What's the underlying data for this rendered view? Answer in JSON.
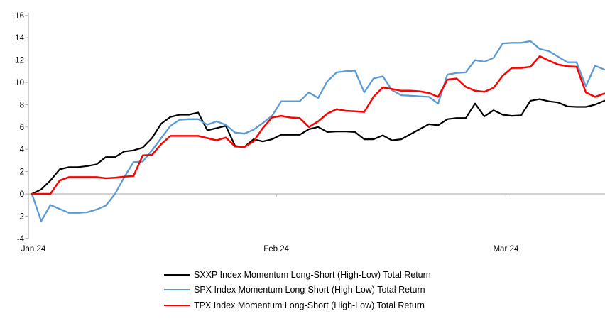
{
  "colors": {
    "background": "#FFFFFF",
    "axis_line": "#A6A6A6",
    "tick_text": "#000000"
  },
  "chart_data": {
    "type": "line",
    "title": "",
    "xlabel": "",
    "ylabel": "",
    "grid": "zero-baseline-only",
    "legend_position": "bottom-center",
    "y_axis": {
      "min": -4,
      "max": 16,
      "tick_step": 2,
      "ticks": [
        16,
        14,
        12,
        10,
        8,
        6,
        4,
        2,
        0,
        -2,
        -4
      ]
    },
    "x_axis": {
      "ticks": [
        {
          "label": "Jan 24",
          "pos": 0.0
        },
        {
          "label": "Feb 24",
          "pos": 0.427
        },
        {
          "label": "Mar 24",
          "pos": 0.828
        }
      ]
    },
    "series": [
      {
        "name": "SXXP Index Momentum Long-Short (High-Low) Total Return",
        "color": "#000000",
        "values": [
          0.0,
          0.4,
          1.2,
          2.2,
          2.4,
          2.4,
          2.5,
          2.65,
          3.3,
          3.3,
          3.8,
          3.9,
          4.15,
          5.0,
          6.3,
          6.9,
          7.1,
          7.1,
          7.3,
          5.7,
          5.9,
          6.1,
          4.3,
          4.2,
          4.9,
          4.7,
          4.9,
          5.3,
          5.3,
          5.3,
          5.8,
          6.0,
          5.55,
          5.6,
          5.6,
          5.55,
          4.9,
          4.9,
          5.25,
          4.8,
          4.9,
          5.35,
          5.8,
          6.25,
          6.15,
          6.7,
          6.8,
          6.8,
          8.1,
          6.95,
          7.5,
          7.1,
          7.0,
          7.05,
          8.35,
          8.5,
          8.3,
          8.2,
          7.85,
          7.8,
          7.8,
          8.0,
          8.35
        ]
      },
      {
        "name": "SPX Index Momentum Long-Short (High-Low) Total Return",
        "color": "#5B9BD5",
        "values": [
          0.0,
          -2.45,
          -1.0,
          -1.35,
          -1.7,
          -1.7,
          -1.65,
          -1.4,
          -1.05,
          0.0,
          1.5,
          2.85,
          2.9,
          3.9,
          5.0,
          6.1,
          6.65,
          6.7,
          6.7,
          6.2,
          6.5,
          6.2,
          5.5,
          5.4,
          5.75,
          6.35,
          7.0,
          8.3,
          8.3,
          8.3,
          9.1,
          8.6,
          10.1,
          10.9,
          11.0,
          11.05,
          9.1,
          10.35,
          10.55,
          9.3,
          8.85,
          8.8,
          8.75,
          8.7,
          8.1,
          10.7,
          10.85,
          10.9,
          12.0,
          11.85,
          12.2,
          13.5,
          13.55,
          13.55,
          13.7,
          13.0,
          12.8,
          12.3,
          11.8,
          11.8,
          9.65,
          11.5,
          11.15
        ]
      },
      {
        "name": "TPX Index Momentum Long-Short (High-Low) Total Return",
        "color": "#FF0000",
        "values": [
          0.0,
          0.0,
          0.0,
          1.2,
          1.5,
          1.5,
          1.5,
          1.5,
          1.4,
          1.45,
          1.55,
          1.6,
          3.45,
          3.5,
          4.45,
          5.2,
          5.2,
          5.2,
          5.2,
          5.0,
          4.8,
          5.05,
          4.25,
          4.2,
          4.7,
          5.9,
          6.85,
          7.0,
          6.85,
          6.8,
          6.0,
          6.5,
          7.2,
          7.6,
          7.45,
          7.4,
          7.35,
          8.7,
          9.55,
          9.4,
          9.25,
          9.25,
          9.2,
          9.05,
          8.7,
          10.25,
          10.35,
          9.6,
          9.25,
          9.15,
          9.5,
          10.6,
          11.3,
          11.3,
          11.4,
          12.35,
          11.95,
          11.6,
          11.45,
          11.4,
          9.1,
          8.7,
          9.0
        ]
      }
    ]
  }
}
